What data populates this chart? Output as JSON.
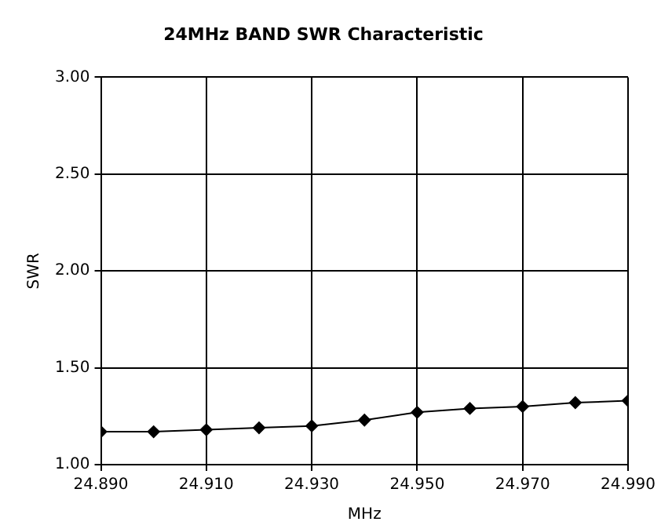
{
  "chart_data": {
    "type": "line",
    "title": "24MHz BAND SWR Characteristic",
    "xlabel": "MHz",
    "ylabel": "SWR",
    "x": [
      24.89,
      24.9,
      24.91,
      24.92,
      24.93,
      24.94,
      24.95,
      24.96,
      24.97,
      24.98,
      24.99
    ],
    "series": [
      {
        "color": "#000000",
        "values": [
          1.17,
          1.17,
          1.18,
          1.19,
          1.2,
          1.23,
          1.27,
          1.29,
          1.3,
          1.32,
          1.33
        ]
      }
    ],
    "xlim": [
      24.89,
      24.99
    ],
    "xticks": [
      {
        "value": 24.89,
        "label": "24.890"
      },
      {
        "value": 24.91,
        "label": "24.910"
      },
      {
        "value": 24.93,
        "label": "24.930"
      },
      {
        "value": 24.95,
        "label": "24.950"
      },
      {
        "value": 24.97,
        "label": "24.970"
      },
      {
        "value": 24.99,
        "label": "24.990"
      }
    ],
    "ylim": [
      1,
      3
    ],
    "yticks": [
      {
        "value": 1,
        "label": "1.00"
      },
      {
        "value": 1.5,
        "label": "1.50"
      },
      {
        "value": 2,
        "label": "2.00"
      },
      {
        "value": 2.5,
        "label": "2.50"
      },
      {
        "value": 3,
        "label": "3.00"
      }
    ],
    "grid": true,
    "legend": false,
    "marker": "diamond",
    "line_style": "solid"
  }
}
